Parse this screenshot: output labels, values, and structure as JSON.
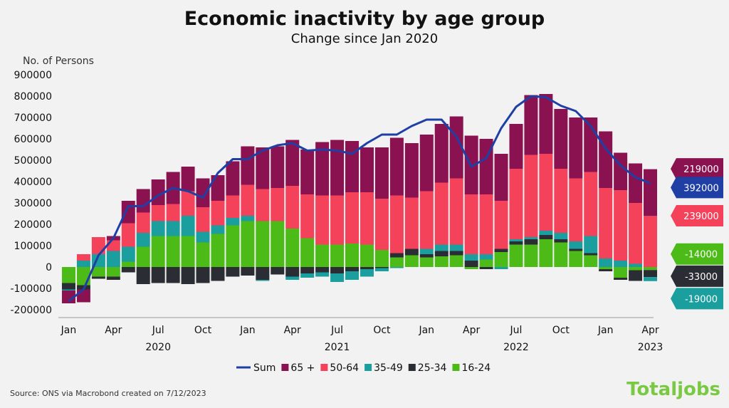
{
  "chart_data": {
    "type": "bar",
    "stacked": true,
    "title": "Economic inactivity by age group",
    "subtitle": "Change since Jan 2020",
    "ylabel": "No. of Persons",
    "ylim": [
      -200000,
      900000
    ],
    "yticks": [
      -200000,
      -100000,
      0,
      100000,
      200000,
      300000,
      400000,
      500000,
      600000,
      700000,
      800000,
      900000
    ],
    "ytick_labels": [
      "-200000",
      "-100000",
      "0",
      "100000",
      "200000",
      "300000",
      "400000",
      "500000",
      "600000",
      "700000",
      "800000",
      "900000"
    ],
    "x_tick_labels": [
      {
        "index": 0,
        "label": "Jan"
      },
      {
        "index": 3,
        "label": "Apr"
      },
      {
        "index": 6,
        "label": "Jul"
      },
      {
        "index": 9,
        "label": "Oct"
      },
      {
        "index": 12,
        "label": "Jan"
      },
      {
        "index": 15,
        "label": "Apr"
      },
      {
        "index": 18,
        "label": "Jul"
      },
      {
        "index": 21,
        "label": "Oct"
      },
      {
        "index": 24,
        "label": "Jan"
      },
      {
        "index": 27,
        "label": "Apr"
      },
      {
        "index": 30,
        "label": "Jul"
      },
      {
        "index": 33,
        "label": "Oct"
      },
      {
        "index": 36,
        "label": "Jan"
      },
      {
        "index": 39,
        "label": "Apr"
      }
    ],
    "year_labels": [
      {
        "index": 6,
        "label": "2020"
      },
      {
        "index": 18,
        "label": "2021"
      },
      {
        "index": 30,
        "label": "2022"
      },
      {
        "index": 39,
        "label": "2023"
      }
    ],
    "categories": [
      "Jan 2020",
      "Feb 2020",
      "Mar 2020",
      "Apr 2020",
      "May 2020",
      "Jun 2020",
      "Jul 2020",
      "Aug 2020",
      "Sep 2020",
      "Oct 2020",
      "Nov 2020",
      "Dec 2020",
      "Jan 2021",
      "Feb 2021",
      "Mar 2021",
      "Apr 2021",
      "May 2021",
      "Jun 2021",
      "Jul 2021",
      "Aug 2021",
      "Sep 2021",
      "Oct 2021",
      "Nov 2021",
      "Dec 2021",
      "Jan 2022",
      "Feb 2022",
      "Mar 2022",
      "Apr 2022",
      "May 2022",
      "Jun 2022",
      "Jul 2022",
      "Aug 2022",
      "Sep 2022",
      "Oct 2022",
      "Nov 2022",
      "Dec 2022",
      "Jan 2023",
      "Feb 2023",
      "Mar 2023",
      "Apr 2023"
    ],
    "series": [
      {
        "name": "16-24",
        "color": "#4cbb17",
        "values": [
          -75000,
          -85000,
          -45000,
          -45000,
          25000,
          95000,
          145000,
          145000,
          145000,
          115000,
          155000,
          195000,
          215000,
          215000,
          215000,
          180000,
          135000,
          105000,
          105000,
          110000,
          105000,
          80000,
          45000,
          55000,
          45000,
          50000,
          55000,
          -10000,
          35000,
          70000,
          105000,
          105000,
          130000,
          115000,
          75000,
          55000,
          -10000,
          -50000,
          -15000,
          -14000
        ]
      },
      {
        "name": "25-34",
        "color": "#2a2d34",
        "values": [
          -30000,
          -20000,
          -10000,
          -15000,
          -25000,
          -80000,
          -75000,
          -75000,
          -80000,
          -75000,
          -65000,
          -45000,
          -40000,
          -60000,
          -35000,
          -45000,
          -30000,
          -25000,
          -30000,
          -20000,
          -10000,
          -5000,
          20000,
          30000,
          15000,
          25000,
          20000,
          30000,
          -10000,
          15000,
          15000,
          25000,
          20000,
          15000,
          10000,
          10000,
          -10000,
          -10000,
          -50000,
          -33000
        ]
      },
      {
        "name": "35-49",
        "color": "#1a9e9e",
        "values": [
          -5000,
          30000,
          60000,
          75000,
          70000,
          65000,
          70000,
          70000,
          95000,
          50000,
          40000,
          35000,
          25000,
          -5000,
          0,
          -15000,
          -20000,
          -20000,
          -40000,
          -40000,
          -35000,
          -15000,
          -5000,
          0,
          25000,
          30000,
          30000,
          30000,
          25000,
          -10000,
          10000,
          10000,
          20000,
          30000,
          35000,
          80000,
          40000,
          30000,
          15000,
          -19000
        ]
      },
      {
        "name": "50-64",
        "color": "#f4425b",
        "values": [
          0,
          30000,
          80000,
          50000,
          110000,
          95000,
          75000,
          80000,
          115000,
          115000,
          115000,
          105000,
          145000,
          150000,
          155000,
          200000,
          205000,
          230000,
          230000,
          240000,
          245000,
          240000,
          270000,
          240000,
          270000,
          290000,
          310000,
          280000,
          280000,
          225000,
          330000,
          385000,
          360000,
          300000,
          295000,
          300000,
          330000,
          330000,
          285000,
          239000
        ]
      },
      {
        "name": "65 +",
        "color": "#8b1250",
        "values": [
          -60000,
          -60000,
          0,
          20000,
          105000,
          110000,
          120000,
          150000,
          115000,
          135000,
          120000,
          160000,
          180000,
          195000,
          195000,
          215000,
          210000,
          250000,
          260000,
          240000,
          210000,
          240000,
          270000,
          255000,
          265000,
          275000,
          290000,
          275000,
          260000,
          220000,
          210000,
          280000,
          280000,
          280000,
          285000,
          255000,
          265000,
          175000,
          185000,
          219000
        ]
      }
    ],
    "sum": {
      "name": "Sum",
      "color": "#1f3fa5",
      "values": [
        -160000,
        -105000,
        55000,
        135000,
        285000,
        285000,
        335000,
        370000,
        355000,
        325000,
        440000,
        505000,
        505000,
        545000,
        570000,
        580000,
        545000,
        550000,
        545000,
        530000,
        580000,
        620000,
        620000,
        660000,
        690000,
        690000,
        610000,
        470000,
        510000,
        650000,
        750000,
        800000,
        795000,
        755000,
        730000,
        660000,
        555000,
        475000,
        420000,
        392000
      ]
    },
    "end_tags": [
      {
        "series": "65 +",
        "label": "219000",
        "color": "#8b1250",
        "at": 459500
      },
      {
        "series": "Sum",
        "label": "392000",
        "color": "#1f3fa5",
        "at": 372000
      },
      {
        "series": "50-64",
        "label": "239000",
        "color": "#f4425b",
        "at": 240000
      },
      {
        "series": "16-24",
        "label": "-14000",
        "color": "#4cbb17",
        "at": 61000
      },
      {
        "series": "25-34",
        "label": "-33000",
        "color": "#2a2d34",
        "at": -43000
      },
      {
        "series": "35-49",
        "label": "-19000",
        "color": "#1a9e9e",
        "at": -148000
      }
    ],
    "legend": {
      "placement": "bottom",
      "order": [
        "Sum",
        "65 +",
        "50-64",
        "35-49",
        "25-34",
        "16-24"
      ]
    },
    "grid": false
  },
  "source": "Source: ONS via Macrobond created on 7/12/2023",
  "brand": "Totaljobs"
}
